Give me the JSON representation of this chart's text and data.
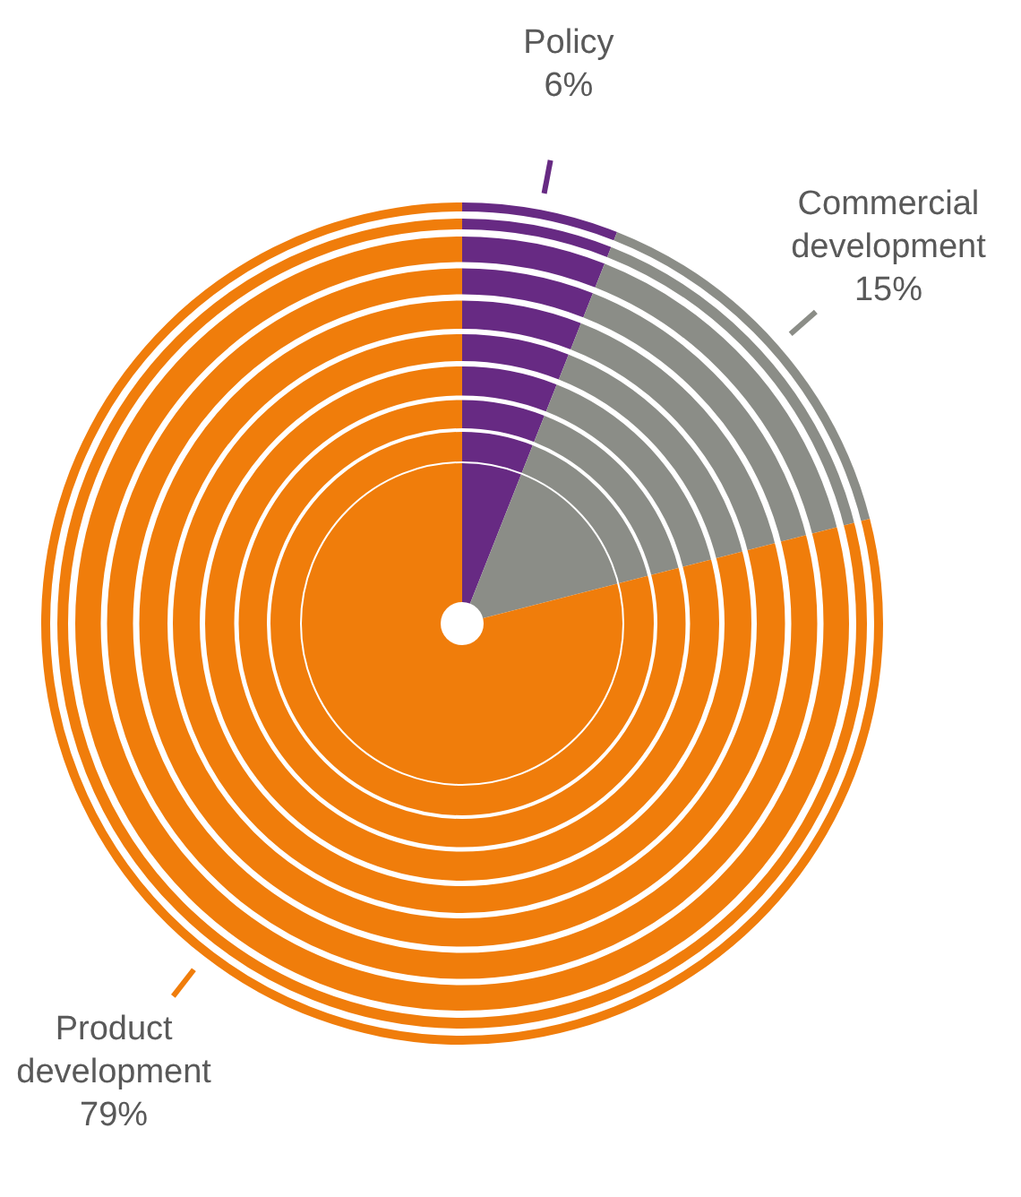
{
  "chart_data": {
    "type": "pie",
    "categories": [
      "Policy",
      "Commercial development",
      "Product development"
    ],
    "values": [
      6,
      15,
      79
    ],
    "colors": [
      "#672a83",
      "#8b8d87",
      "#f07d0b"
    ],
    "value_labels": [
      "6%",
      "15%",
      "79%"
    ]
  }
}
